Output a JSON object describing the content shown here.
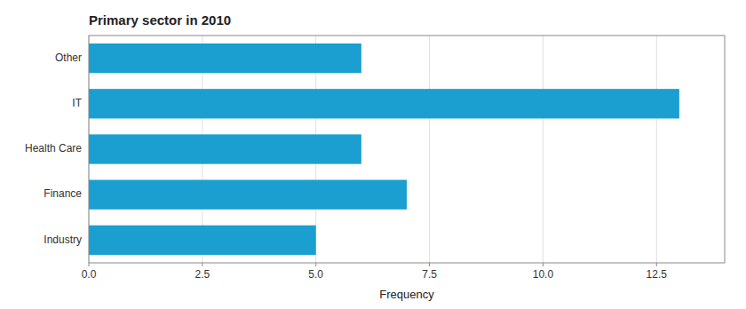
{
  "chart_data": {
    "type": "bar",
    "orientation": "horizontal",
    "title": "Primary sector in 2010",
    "categories": [
      "Other",
      "IT",
      "Health Care",
      "Finance",
      "Industry"
    ],
    "values": [
      6.0,
      13.0,
      6.0,
      7.0,
      5.0
    ],
    "color": "#1a9fd0",
    "xlabel": "Frequency",
    "xlim": [
      0,
      14.0
    ],
    "xticks": [
      {
        "value": 0.0,
        "label": "0.0"
      },
      2.5,
      {
        "value": 5.0,
        "label": "5.0"
      },
      7.5,
      {
        "value": 10.0,
        "label": "10.0"
      },
      12.5
    ],
    "grid": true
  }
}
